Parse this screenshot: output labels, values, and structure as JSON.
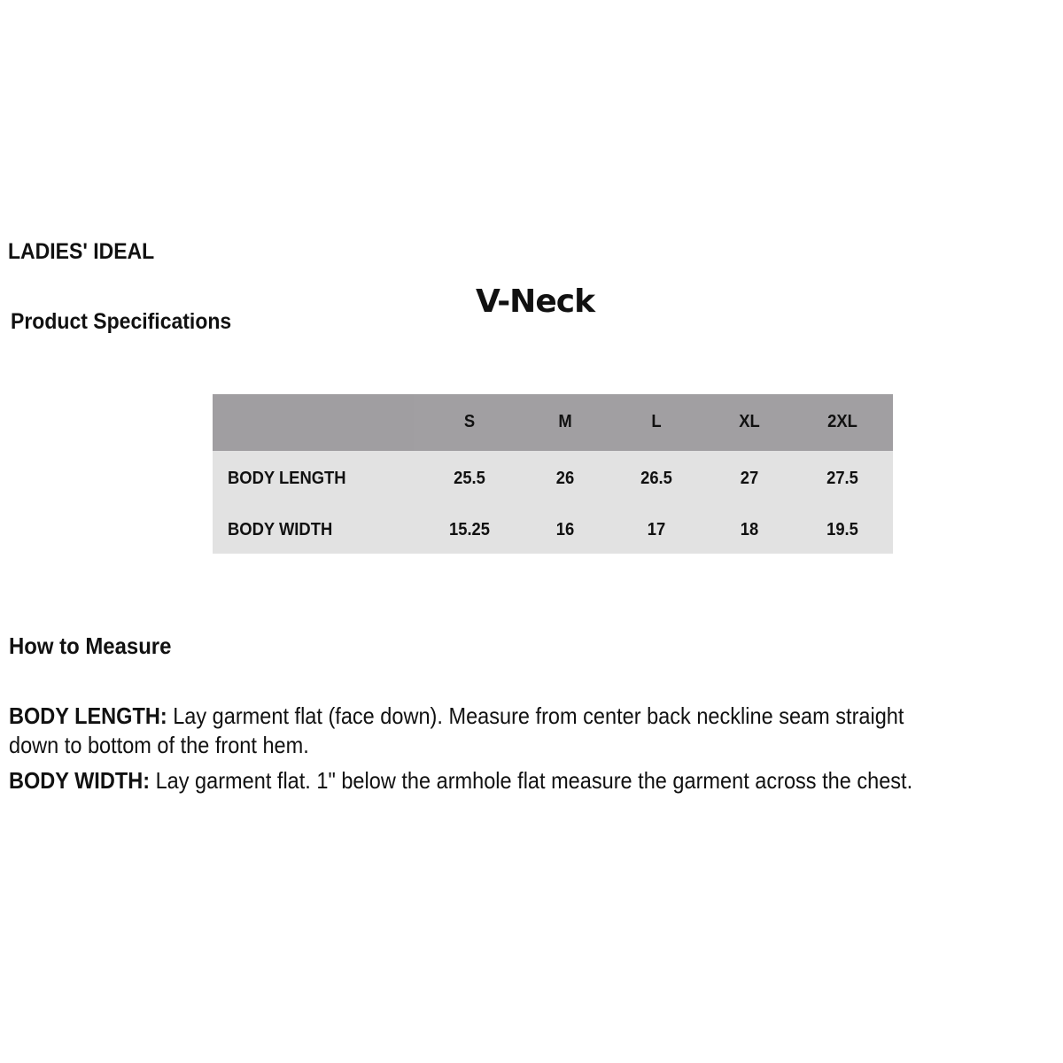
{
  "brand": "LADIES' IDEAL",
  "section_title": "Product Specifications",
  "style_name": "V-Neck",
  "colors": {
    "header_bg": "#a19fa2",
    "body_bg": "#e2e2e2"
  },
  "table": {
    "sizes": [
      "S",
      "M",
      "L",
      "XL",
      "2XL"
    ],
    "rows": [
      {
        "label": "BODY LENGTH",
        "values": [
          "25.5",
          "26",
          "26.5",
          "27",
          "27.5"
        ]
      },
      {
        "label": "BODY WIDTH",
        "values": [
          "15.25",
          "16",
          "17",
          "18",
          "19.5"
        ]
      }
    ]
  },
  "how_to_measure": {
    "title": "How to Measure",
    "items": [
      {
        "term": "BODY LENGTH:",
        "line1": " Lay garment flat (face down). Measure from center back neckline seam straight",
        "line2": "down to bottom of the front hem."
      },
      {
        "term": "BODY WIDTH:",
        "line1": " Lay garment flat. 1\" below the armhole flat measure the garment across the chest."
      }
    ]
  }
}
